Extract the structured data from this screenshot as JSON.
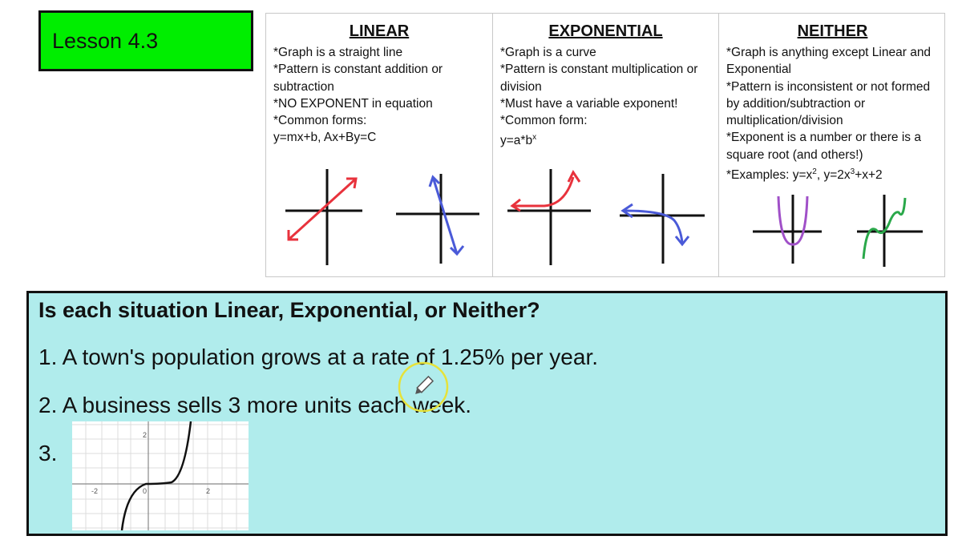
{
  "lesson": {
    "title": "Lesson 4.3"
  },
  "reference": {
    "linear": {
      "title": "LINEAR",
      "text": "*Graph is a straight line\n*Pattern is constant addition or subtraction\n*NO EXPONENT in equation\n*Common forms:\ny=mx+b,   Ax+By=C"
    },
    "exponential": {
      "title": "EXPONENTIAL",
      "text_before": "*Graph is a curve\n*Pattern is constant multiplication or division\n*Must have a variable exponent!\n*Common form:\ny=a*b",
      "exp_sup": "x"
    },
    "neither": {
      "title": "NEITHER",
      "text_before": "*Graph is anything except Linear and Exponential\n*Pattern is inconsistent or not formed by addition/subtraction or multiplication/division\n*Exponent is a number or there is a square root (and others!)\n*Examples: y=x",
      "sup1": "2",
      "mid": ",   y=2x",
      "sup2": "3",
      "after": "+x+2"
    }
  },
  "questions": {
    "heading": "Is each situation Linear, Exponential, or Neither?",
    "q1": "1. A town's population grows at a rate of 1.25% per year.",
    "q2": "2. A business sells 3 more units each week.",
    "q3": "3.",
    "q3_graph": {
      "tick_labels": {
        "x_neg": "-2",
        "origin": "0",
        "x_pos": "2",
        "y_pos": "2"
      }
    }
  },
  "colors": {
    "lesson_bg": "#00ee00",
    "panel_bg": "#b0ecec",
    "linear": "#e8323c",
    "blue": "#4a5ad8",
    "purple": "#a050c8",
    "green": "#2aa84a",
    "cursor": "#e6e23a"
  },
  "icons": [
    "pencil-icon"
  ]
}
